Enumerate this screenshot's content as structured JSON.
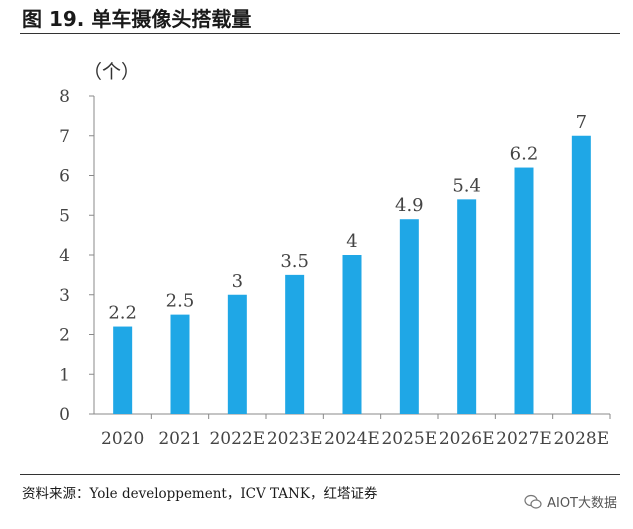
{
  "figure_title": "图 19. 单车摄像头搭载量",
  "source_note": "资料来源：Yole developpement，ICV TANK，红塔证券",
  "watermark": "AIOT大数据",
  "colors": {
    "bar": "#1fa7e6",
    "axis": "#888888"
  },
  "chart_data": {
    "type": "bar",
    "unit_label": "（个）",
    "categories": [
      "2020",
      "2021",
      "2022E",
      "2023E",
      "2024E",
      "2025E",
      "2026E",
      "2027E",
      "2028E"
    ],
    "values": [
      2.2,
      2.5,
      3,
      3.5,
      4,
      4.9,
      5.4,
      6.2,
      7
    ],
    "value_labels": [
      "2.2",
      "2.5",
      "3",
      "3.5",
      "4",
      "4.9",
      "5.4",
      "6.2",
      "7"
    ],
    "ylim": [
      0,
      8
    ],
    "yticks": [
      0,
      1,
      2,
      3,
      4,
      5,
      6,
      7,
      8
    ],
    "grid": false,
    "legend": false
  }
}
